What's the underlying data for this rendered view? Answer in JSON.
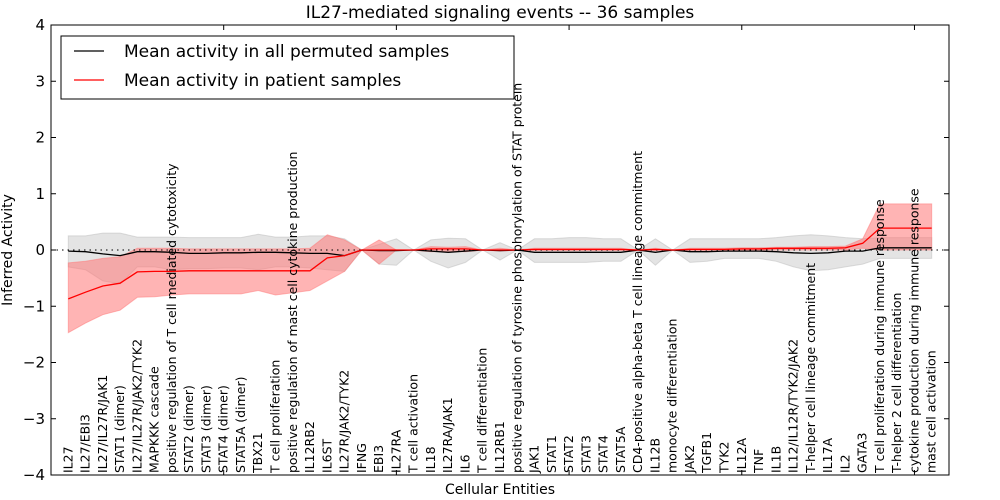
{
  "chart_data": {
    "type": "line",
    "title": "IL27-mediated signaling events -- 36 samples",
    "xlabel": "Cellular Entities",
    "ylabel": "Inferred Activity",
    "ylim": [
      -4,
      4
    ],
    "xlim": [
      0,
      52
    ],
    "yticks": [
      -4,
      -3,
      -2,
      -1,
      0,
      1,
      2,
      3,
      4
    ],
    "ytick_labels": [
      "−4",
      "−3",
      "−2",
      "−1",
      "0",
      "1",
      "2",
      "3",
      "4"
    ],
    "xticks_major": [
      10,
      20,
      30,
      40,
      50
    ],
    "baseline": 0,
    "grid": false,
    "legend_position": "top-left",
    "categories": [
      "IL27",
      "IL27/EBI3",
      "IL27/IL27R/JAK1",
      "STAT1 (dimer)",
      "IL27/IL27R/JAK2/TYK2",
      "MAPKKK cascade",
      "positive regulation of T cell mediated cytotoxicity",
      "STAT2 (dimer)",
      "STAT3 (dimer)",
      "STAT4 (dimer)",
      "STAT5A (dimer)",
      "TBX21",
      "T cell proliferation",
      "positive regulation of mast cell cytokine production",
      "IL12RB2",
      "IL6ST",
      "IL27R/JAK2/TYK2",
      "IFNG",
      "EBI3",
      "IL27RA",
      "T cell activation",
      "IL18",
      "IL27RA/JAK1",
      "IL6",
      "T cell differentiation",
      "IL12RB1",
      "positive regulation of tyrosine phosphorylation of STAT protein",
      "JAK1",
      "STAT1",
      "STAT2",
      "STAT3",
      "STAT4",
      "STAT5A",
      "CD4-positive alpha-beta T cell lineage commitment",
      "IL12B",
      "monocyte differentiation",
      "JAK2",
      "TGFB1",
      "TYK2",
      "IL12A",
      "TNF",
      "IL1B",
      "IL12/IL12R/TYK2/JAK2",
      "T-helper cell lineage commitment",
      "IL17A",
      "IL2",
      "GATA3",
      "T cell proliferation during immune response",
      "T-helper 2 cell differentiation",
      "cytokine production during immune response",
      "mast cell activation"
    ],
    "series": [
      {
        "name": "Mean activity in all permuted samples",
        "color": "#000000",
        "band_color": "#bbbbbb",
        "values": [
          -0.02,
          -0.03,
          -0.07,
          -0.1,
          -0.03,
          -0.03,
          -0.04,
          -0.06,
          -0.06,
          -0.05,
          -0.05,
          -0.04,
          -0.04,
          -0.05,
          -0.06,
          -0.06,
          -0.1,
          0.0,
          -0.01,
          -0.01,
          0.0,
          -0.02,
          -0.04,
          -0.02,
          0.0,
          -0.01,
          0.0,
          -0.04,
          -0.04,
          -0.04,
          -0.04,
          -0.04,
          -0.04,
          0.0,
          -0.04,
          0.0,
          -0.03,
          -0.03,
          -0.02,
          -0.02,
          -0.02,
          -0.03,
          -0.05,
          -0.06,
          -0.05,
          -0.02,
          -0.02,
          0.04,
          0.04,
          0.04,
          0.04
        ],
        "upper": [
          0.25,
          0.25,
          0.3,
          0.3,
          0.23,
          0.23,
          0.23,
          0.22,
          0.22,
          0.22,
          0.22,
          0.28,
          0.23,
          0.23,
          0.25,
          0.25,
          0.2,
          0.0,
          0.1,
          0.2,
          0.0,
          0.18,
          0.21,
          0.2,
          0.0,
          0.13,
          0.0,
          0.2,
          0.2,
          0.22,
          0.22,
          0.2,
          0.2,
          0.0,
          0.2,
          0.0,
          0.2,
          0.2,
          0.2,
          0.2,
          0.2,
          0.22,
          0.25,
          0.27,
          0.25,
          0.22,
          0.2,
          0.22,
          0.22,
          0.22,
          0.22
        ],
        "lower": [
          -0.3,
          -0.35,
          -0.55,
          -0.6,
          -0.3,
          -0.3,
          -0.35,
          -0.33,
          -0.33,
          -0.32,
          -0.32,
          -0.35,
          -0.3,
          -0.3,
          -0.32,
          -0.35,
          -0.38,
          0.0,
          -0.25,
          -0.27,
          0.0,
          -0.2,
          -0.32,
          -0.22,
          0.0,
          -0.18,
          0.0,
          -0.22,
          -0.22,
          -0.22,
          -0.22,
          -0.2,
          -0.2,
          0.0,
          -0.27,
          0.0,
          -0.22,
          -0.2,
          -0.15,
          -0.15,
          -0.15,
          -0.2,
          -0.3,
          -0.37,
          -0.35,
          -0.3,
          -0.25,
          -0.15,
          -0.15,
          -0.15,
          -0.15
        ]
      },
      {
        "name": "Mean activity in patient samples",
        "color": "#ff0000",
        "band_color": "#ff7777",
        "values": [
          -0.87,
          -0.75,
          -0.64,
          -0.59,
          -0.39,
          -0.38,
          -0.38,
          -0.37,
          -0.37,
          -0.37,
          -0.37,
          -0.37,
          -0.37,
          -0.37,
          -0.37,
          -0.14,
          -0.1,
          0.0,
          0.0,
          0.0,
          0.0,
          0.02,
          0.02,
          0.02,
          0.0,
          0.0,
          0.0,
          0.01,
          0.01,
          0.01,
          0.01,
          0.01,
          0.01,
          0.0,
          0.01,
          0.0,
          0.01,
          0.01,
          0.01,
          0.02,
          0.02,
          0.03,
          0.03,
          0.03,
          0.03,
          0.04,
          0.12,
          0.39,
          0.39,
          0.39,
          0.39
        ],
        "upper": [
          -0.23,
          -0.2,
          -0.15,
          -0.12,
          0.03,
          0.03,
          0.03,
          0.02,
          0.02,
          0.02,
          0.02,
          0.02,
          0.02,
          0.02,
          0.03,
          0.27,
          0.18,
          0.0,
          0.18,
          0.0,
          0.0,
          0.06,
          0.05,
          0.06,
          0.0,
          0.03,
          0.0,
          0.03,
          0.03,
          0.03,
          0.03,
          0.03,
          0.03,
          0.0,
          0.03,
          0.0,
          0.03,
          0.03,
          0.03,
          0.04,
          0.04,
          0.05,
          0.05,
          0.06,
          0.06,
          0.07,
          0.2,
          0.82,
          0.82,
          0.82,
          0.82
        ],
        "lower": [
          -1.47,
          -1.3,
          -1.15,
          -1.07,
          -0.84,
          -0.83,
          -0.8,
          -0.78,
          -0.78,
          -0.78,
          -0.78,
          -0.72,
          -0.8,
          -0.76,
          -0.72,
          -0.55,
          -0.38,
          0.0,
          -0.25,
          0.0,
          0.0,
          -0.03,
          -0.02,
          -0.03,
          0.0,
          -0.02,
          0.0,
          -0.01,
          -0.01,
          -0.01,
          -0.01,
          -0.01,
          -0.01,
          0.0,
          -0.01,
          0.0,
          -0.01,
          -0.01,
          -0.01,
          0.0,
          0.0,
          0.0,
          0.0,
          0.0,
          0.0,
          0.0,
          0.03,
          0.0,
          0.0,
          0.0,
          0.0
        ]
      }
    ],
    "legend": [
      {
        "label": "Mean activity in all permuted samples",
        "color": "#000000"
      },
      {
        "label": "Mean activity in patient samples",
        "color": "#ff0000"
      }
    ]
  }
}
